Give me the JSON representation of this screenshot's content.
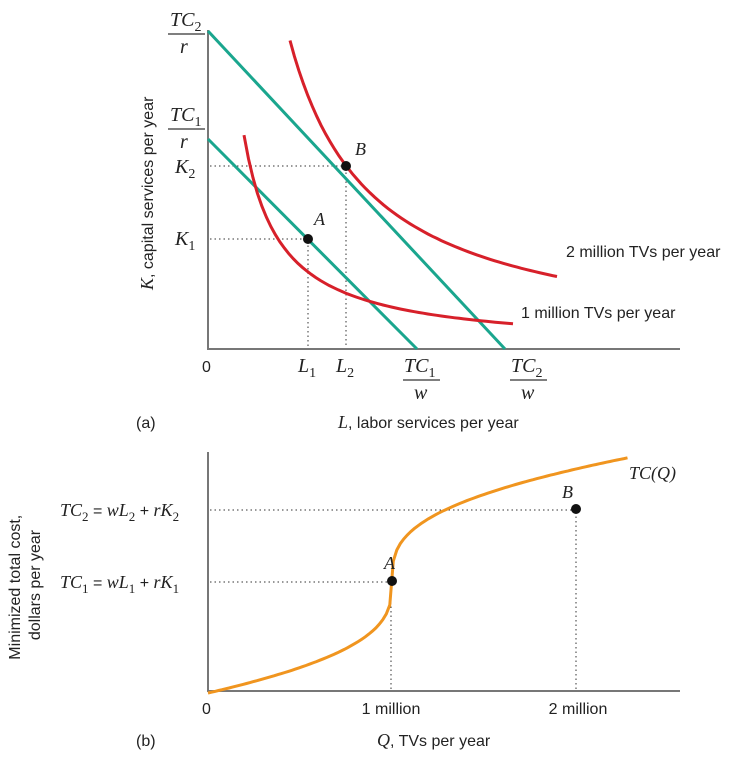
{
  "chart_data": [
    {
      "panel_label": "(a)",
      "type": "line",
      "origin_label": "0",
      "xlabel": {
        "var": "L",
        "text": ", labor services per year"
      },
      "ylabel": {
        "var": "K",
        "text": ", capital services per year"
      },
      "y_ticks": [
        {
          "name": "tc2-over-r",
          "num": "TC",
          "sub": "2",
          "den": "r"
        },
        {
          "name": "tc1-over-r",
          "num": "TC",
          "sub": "1",
          "den": "r"
        },
        {
          "name": "k2",
          "var": "K",
          "sub": "2"
        },
        {
          "name": "k1",
          "var": "K",
          "sub": "1"
        }
      ],
      "x_ticks": [
        {
          "name": "l1",
          "var": "L",
          "sub": "1"
        },
        {
          "name": "l2",
          "var": "L",
          "sub": "2"
        },
        {
          "name": "tc1-over-w",
          "num": "TC",
          "sub": "1",
          "den": "w"
        },
        {
          "name": "tc2-over-w",
          "num": "TC",
          "sub": "2",
          "den": "w"
        }
      ],
      "series": [
        {
          "kind": "isocost",
          "color": "#1aa68e",
          "x0": 0,
          "y0": 210,
          "x1": 209,
          "y1": 0
        },
        {
          "kind": "isocost",
          "color": "#1aa68e",
          "x0": 0,
          "y0": 318,
          "x1": 297,
          "y1": 0
        },
        {
          "kind": "isoquant",
          "name": "1 million TVs per year",
          "color": "#d7202a",
          "k": 7700,
          "x_from": 36,
          "x_to": 305
        },
        {
          "kind": "isoquant",
          "name": "2 million TVs per year",
          "color": "#d7202a",
          "k": 25300,
          "x_from": 82,
          "x_to": 349
        }
      ],
      "points": [
        {
          "label": "A",
          "x": 100,
          "y": 110
        },
        {
          "label": "B",
          "x": 138,
          "y": 183
        }
      ]
    },
    {
      "panel_label": "(b)",
      "type": "line",
      "origin_label": "0",
      "xlabel": {
        "var": "Q",
        "text": ", TVs per year"
      },
      "ylabel": [
        "Minimized total cost,",
        "dollars per year"
      ],
      "y_ticks": [
        {
          "name": "tc2-eq",
          "parts": [
            "TC",
            "2",
            " = ",
            "w",
            "L",
            "2",
            " + ",
            "r",
            "K",
            "2"
          ]
        },
        {
          "name": "tc1-eq",
          "parts": [
            "TC",
            "1",
            " = ",
            "w",
            "L",
            "1",
            " + ",
            "r",
            "K",
            "1"
          ]
        }
      ],
      "x_ticks": [
        "1 million",
        "2 million"
      ],
      "curve_label": "TC(Q)",
      "series": [
        {
          "name": "TC(Q)",
          "color": "#f0951f"
        }
      ],
      "points": [
        {
          "label": "A",
          "x": 1,
          "y": 110
        },
        {
          "label": "B",
          "x": 2,
          "y": 182
        }
      ]
    }
  ]
}
